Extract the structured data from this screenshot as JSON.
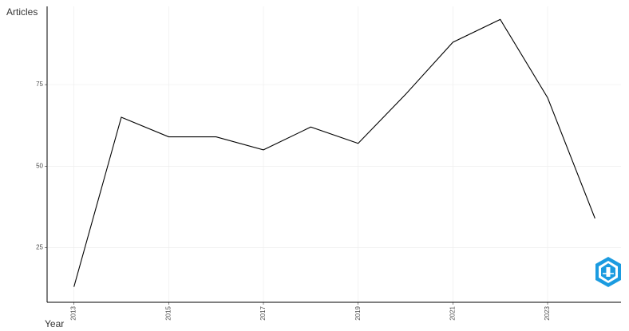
{
  "chart_data": {
    "type": "line",
    "x_label": "Year",
    "y_label": "Articles",
    "x": [
      2013,
      2014,
      2015,
      2016,
      2017,
      2018,
      2019,
      2020,
      2021,
      2022,
      2023,
      2024
    ],
    "values": [
      13,
      65,
      59,
      59,
      55,
      62,
      57,
      72,
      88,
      95,
      71,
      34
    ],
    "color": "#000000",
    "xlim": [
      2012.45,
      2024.55
    ],
    "xticks": [
      2013,
      2015,
      2017,
      2019,
      2021,
      2023
    ],
    "ylim": [
      8.5,
      99
    ],
    "yticks": [
      25,
      50,
      75
    ],
    "grid": true
  }
}
